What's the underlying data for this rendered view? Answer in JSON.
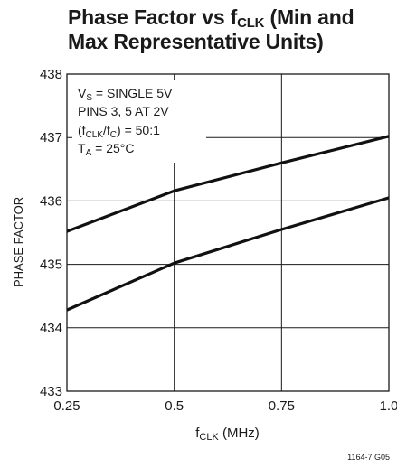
{
  "header": {
    "title_part1": "Phase Factor vs f",
    "title_sub": "CLK",
    "title_part2": " (Min and",
    "title_line2": "Max Representative Units)"
  },
  "annotations": {
    "line1_a": "V",
    "line1_sub": "S",
    "line1_b": " = SINGLE 5V",
    "line2": "PINS 3, 5 AT 2V",
    "line3_a": "(f",
    "line3_sub1": "CLK",
    "line3_b": "/f",
    "line3_sub2": "C",
    "line3_c": ") = 50:1",
    "line4_a": "T",
    "line4_sub": "A",
    "line4_b": " = 25°C"
  },
  "axes": {
    "ylabel": "PHASE FACTOR",
    "xlabel_a": "f",
    "xlabel_sub": "CLK",
    "xlabel_b": " (MHz)"
  },
  "figure_id": "1164-7 G05",
  "colors": {
    "line": "#111111",
    "grid": "#1a1a1a",
    "frame": "#1a1a1a"
  },
  "chart_data": {
    "type": "line",
    "x_ticks": [
      "0.25",
      "0.5",
      "0.75",
      "1.0"
    ],
    "y_ticks": [
      "438",
      "437",
      "436",
      "435",
      "434",
      "433"
    ],
    "xlim": [
      0.25,
      1.0
    ],
    "ylim": [
      433,
      438
    ],
    "grid": true,
    "series": [
      {
        "x": [
          0.25,
          0.5,
          0.75,
          1.0
        ],
        "y": [
          435.52,
          436.16,
          436.6,
          437.02
        ]
      },
      {
        "x": [
          0.25,
          0.5,
          0.75,
          1.0
        ],
        "y": [
          434.28,
          435.02,
          435.55,
          436.05
        ]
      }
    ]
  }
}
